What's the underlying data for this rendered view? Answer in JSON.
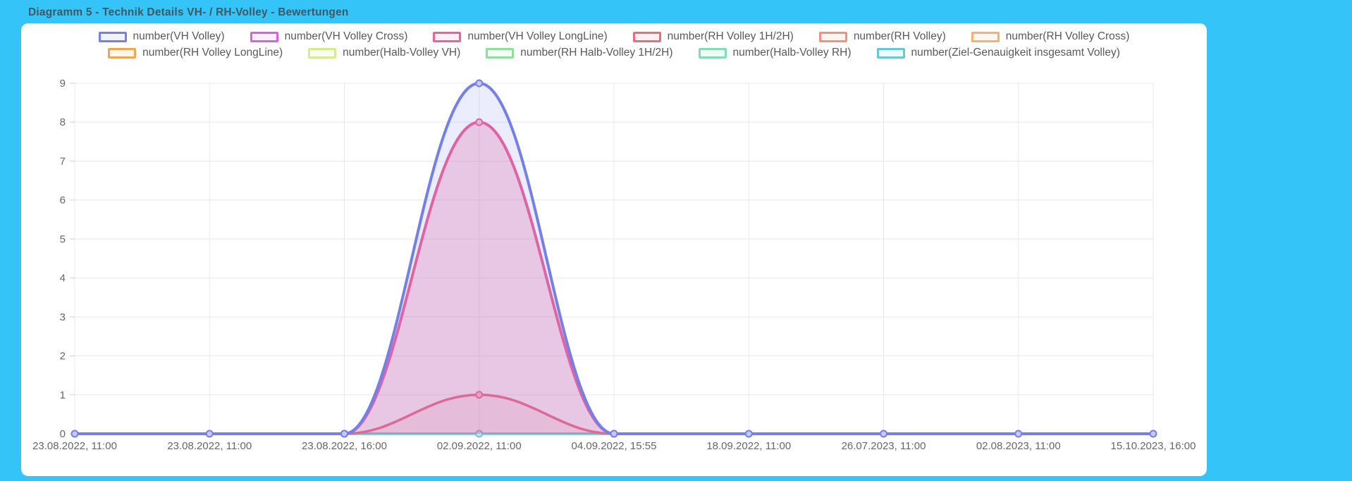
{
  "title": "Diagramm 5 - Technik Details VH- / RH-Volley - Bewertungen",
  "colors": {
    "background": "#35c4f8",
    "card": "#ffffff",
    "title_text": "#3f5864",
    "grid": "#e8e8e8",
    "tick_stub": "#d0d0d0",
    "tick_text": "#666666",
    "legend_text": "#595959"
  },
  "chart_data": {
    "type": "line",
    "title": "Diagramm 5 - Technik Details VH- / RH-Volley - Bewertungen",
    "x_labels": [
      "23.08.2022, 11:00",
      "23.08.2022, 11:00",
      "23.08.2022, 16:00",
      "02.09.2022, 11:00",
      "04.09.2022, 15:55",
      "18.09.2022, 11:00",
      "26.07.2023, 11:00",
      "02.08.2023, 11:00",
      "15.10.2023, 16:00"
    ],
    "y_ticks": [
      0,
      1,
      2,
      3,
      4,
      5,
      6,
      7,
      8,
      9
    ],
    "ylim": [
      0,
      9
    ],
    "grid": "both",
    "legend_position": "top",
    "series": [
      {
        "name": "number(VH Volley)",
        "color": "#7380e8",
        "line_width": 4,
        "fill_opacity": 0.14,
        "values": [
          0,
          0,
          0,
          9,
          0,
          0,
          0,
          0,
          0
        ]
      },
      {
        "name": "number(VH Volley Cross)",
        "color": "#dd5dea",
        "line_width": 3.5,
        "fill_opacity": 0.12,
        "values": [
          null,
          null,
          null,
          null,
          null,
          null,
          null,
          null,
          null
        ]
      },
      {
        "name": "number(VH Volley LongLine)",
        "color": "#f0609a",
        "line_width": 4,
        "fill_opacity": 0.28,
        "values": [
          null,
          null,
          0,
          8,
          0,
          null,
          null,
          null,
          null
        ]
      },
      {
        "name": "number(RH Volley 1H/2H)",
        "color": "#ed6b7e",
        "line_width": 3.5,
        "fill_opacity": 0.12,
        "values": [
          null,
          null,
          0,
          1,
          0,
          null,
          null,
          null,
          null
        ]
      },
      {
        "name": "number(RH Volley)",
        "color": "#f4917e",
        "line_width": 3.5,
        "fill_opacity": 0.12,
        "values": [
          null,
          null,
          null,
          null,
          null,
          null,
          null,
          null,
          null
        ]
      },
      {
        "name": "number(RH Volley Cross)",
        "color": "#f6b070",
        "line_width": 3.5,
        "fill_opacity": 0.12,
        "values": [
          null,
          null,
          null,
          null,
          null,
          null,
          null,
          null,
          null
        ]
      },
      {
        "name": "number(RH Volley LongLine)",
        "color": "#efa650",
        "line_width": 3.5,
        "fill_opacity": 0.12,
        "values": [
          null,
          null,
          null,
          null,
          null,
          null,
          null,
          null,
          null
        ]
      },
      {
        "name": "number(Halb-Volley VH)",
        "color": "#d3ec8d",
        "line_width": 3.5,
        "fill_opacity": 0.12,
        "values": [
          null,
          null,
          null,
          null,
          null,
          null,
          null,
          null,
          null
        ]
      },
      {
        "name": "number(RH Halb-Volley 1H/2H)",
        "color": "#90dd9f",
        "line_width": 3.5,
        "fill_opacity": 0.12,
        "values": [
          null,
          null,
          null,
          null,
          null,
          null,
          null,
          null,
          null
        ]
      },
      {
        "name": "number(Halb-Volley RH)",
        "color": "#85dab8",
        "line_width": 3.5,
        "fill_opacity": 0.12,
        "values": [
          null,
          null,
          null,
          null,
          null,
          null,
          null,
          null,
          null
        ]
      },
      {
        "name": "number(Ziel-Genauigkeit insgesamt Volley)",
        "color": "#67c9cd",
        "line_width": 3.5,
        "fill_opacity": 0,
        "values": [
          null,
          null,
          0,
          0,
          0,
          null,
          null,
          null,
          null
        ]
      }
    ]
  }
}
